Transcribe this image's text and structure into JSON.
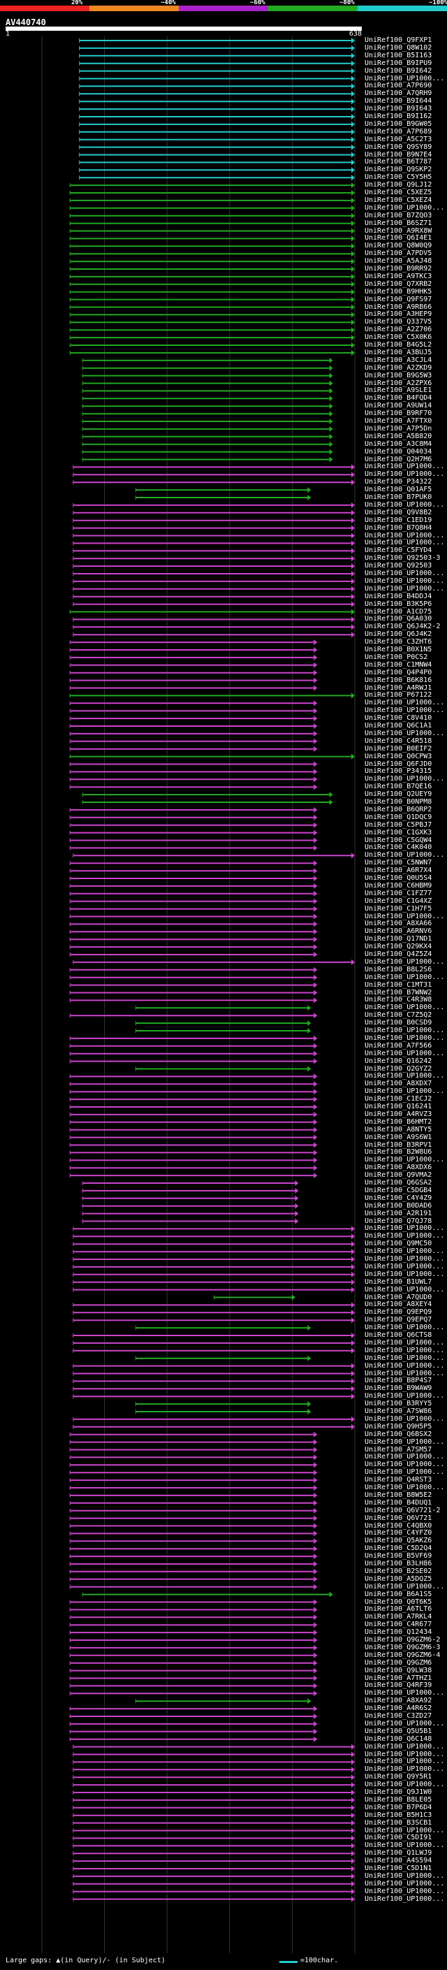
{
  "query": {
    "title": "AV440740",
    "scale_start": "1",
    "scale_end": "638"
  },
  "legend": {
    "segments": [
      {
        "label": "20%",
        "color": "#ee2222"
      },
      {
        "label": "~40%",
        "color": "#ee8822"
      },
      {
        "label": "~60%",
        "color": "#aa22cc"
      },
      {
        "label": "~80%",
        "color": "#22aa22"
      },
      {
        "label": "~100%",
        "color": "#22cccc"
      }
    ]
  },
  "colors": {
    "cyan": "#22cccc",
    "green": "#22aa22",
    "magenta": "#cc44cc",
    "gap_dot": "#ffffaa"
  },
  "hit_patterns": [
    {
      "color": "cyan",
      "start": 0.12,
      "end": 1.0
    },
    {
      "color": "green",
      "start": 0.09,
      "end": 1.0
    },
    {
      "color": "green",
      "start": 0.13,
      "end": 0.93
    },
    {
      "color": "magenta",
      "start": 0.1,
      "end": 1.0
    },
    {
      "color": "magenta",
      "start": 0.09,
      "end": 0.88
    },
    {
      "color": "green",
      "start": 0.3,
      "end": 0.86
    },
    {
      "color": "magenta",
      "start": 0.13,
      "end": 0.82
    },
    {
      "color": "green",
      "start": 0.55,
      "end": 0.81
    }
  ],
  "hits": [
    {
      "label": "UniRef100_Q9FXP1",
      "pattern": 0
    },
    {
      "label": "UniRef100_Q8W102",
      "pattern": 0
    },
    {
      "label": "UniRef100_B5I163",
      "pattern": 0
    },
    {
      "label": "UniRef100_B9IPU9",
      "pattern": 0
    },
    {
      "label": "UniRef100_B9I642",
      "pattern": 0
    },
    {
      "label": "UniRef100_UP1000...",
      "pattern": 0
    },
    {
      "label": "UniRef100_A7P690",
      "pattern": 0
    },
    {
      "label": "UniRef100_A7QRH9",
      "pattern": 0
    },
    {
      "label": "UniRef100_B9I644",
      "pattern": 0
    },
    {
      "label": "UniRef100_B9I643",
      "pattern": 0
    },
    {
      "label": "UniRef100_B9I162",
      "pattern": 0
    },
    {
      "label": "UniRef100_B9GW05",
      "pattern": 0
    },
    {
      "label": "UniRef100_A7P689",
      "pattern": 0
    },
    {
      "label": "UniRef100_A5C2T3",
      "pattern": 0
    },
    {
      "label": "UniRef100_Q9SY89",
      "pattern": 0
    },
    {
      "label": "UniRef100_B9N7E4",
      "pattern": 0
    },
    {
      "label": "UniRef100_B6T787",
      "pattern": 0
    },
    {
      "label": "UniRef100_Q9SKP2",
      "pattern": 0
    },
    {
      "label": "UniRef100_C5Y5H5",
      "pattern": 0
    },
    {
      "label": "UniRef100_Q9LJ12",
      "pattern": 1
    },
    {
      "label": "UniRef100_C5XEZ5",
      "pattern": 1
    },
    {
      "label": "UniRef100_C5XEZ4",
      "pattern": 1
    },
    {
      "label": "UniRef100_UP1000...",
      "pattern": 1
    },
    {
      "label": "UniRef100_B7ZQO3",
      "pattern": 1
    },
    {
      "label": "UniRef100_B6SZ71",
      "pattern": 1
    },
    {
      "label": "UniRef100_A9RX8W",
      "pattern": 1
    },
    {
      "label": "UniRef100_Q6I4E1",
      "pattern": 1
    },
    {
      "label": "UniRef100_Q8W0Q9",
      "pattern": 1
    },
    {
      "label": "UniRef100_A7PDV5",
      "pattern": 1
    },
    {
      "label": "UniRef100_A5AJ48",
      "pattern": 1
    },
    {
      "label": "UniRef100_B9RR92",
      "pattern": 1
    },
    {
      "label": "UniRef100_A9TKC3",
      "pattern": 1
    },
    {
      "label": "UniRef100_Q7XRB2",
      "pattern": 1
    },
    {
      "label": "UniRef100_B9HHK5",
      "pattern": 1
    },
    {
      "label": "UniRef100_Q9FS97",
      "pattern": 1
    },
    {
      "label": "UniRef100_A9RB66",
      "pattern": 1
    },
    {
      "label": "UniRef100_A3HEP9",
      "pattern": 1
    },
    {
      "label": "UniRef100_Q337V5",
      "pattern": 1
    },
    {
      "label": "UniRef100_A2Z706",
      "pattern": 1
    },
    {
      "label": "UniRef100_C5X0K6",
      "pattern": 1
    },
    {
      "label": "UniRef100_B4G5L2",
      "pattern": 1
    },
    {
      "label": "UniRef100_A3BUJ5",
      "pattern": 1
    },
    {
      "label": "UniRef100_A3CJL4",
      "pattern": 2
    },
    {
      "label": "UniRef100_A2ZKD9",
      "pattern": 2
    },
    {
      "label": "UniRef100_B9G5W3",
      "pattern": 2
    },
    {
      "label": "UniRef100_A2ZPX6",
      "pattern": 2
    },
    {
      "label": "UniRef100_A9SLE1",
      "pattern": 2
    },
    {
      "label": "UniRef100_B4FQD4",
      "pattern": 2
    },
    {
      "label": "UniRef100_A9UW14",
      "pattern": 2
    },
    {
      "label": "UniRef100_B9RF70",
      "pattern": 2
    },
    {
      "label": "UniRef100_A7FTX0",
      "pattern": 2
    },
    {
      "label": "UniRef100_A7P5Dn",
      "pattern": 2
    },
    {
      "label": "UniRef100_A5B820",
      "pattern": 2
    },
    {
      "label": "UniRef100_A3C8M4",
      "pattern": 2
    },
    {
      "label": "UniRef100_Q04034",
      "pattern": 2
    },
    {
      "label": "UniRef100_Q2H7M6",
      "pattern": 2
    },
    {
      "label": "UniRef100_UP1000...",
      "pattern": 3
    },
    {
      "label": "UniRef100_UP1000...",
      "pattern": 3
    },
    {
      "label": "UniRef100_P34322",
      "pattern": 3
    },
    {
      "label": "UniRef100_Q01AF5",
      "pattern": 5
    },
    {
      "label": "UniRef100_B7PUK0",
      "pattern": 5
    },
    {
      "label": "UniRef100_UP1000...",
      "pattern": 3
    },
    {
      "label": "UniRef100_Q9V8B2",
      "pattern": 3
    },
    {
      "label": "UniRef100_C1ED19",
      "pattern": 3
    },
    {
      "label": "UniRef100_B7Q8H4",
      "pattern": 3
    },
    {
      "label": "UniRef100_UP1000...",
      "pattern": 3
    },
    {
      "label": "UniRef100_UP1000...",
      "pattern": 3
    },
    {
      "label": "UniRef100_C5FYD4",
      "pattern": 3
    },
    {
      "label": "UniRef100_Q92503-3",
      "pattern": 3
    },
    {
      "label": "UniRef100_Q92503",
      "pattern": 3
    },
    {
      "label": "UniRef100_UP1000...",
      "pattern": 3
    },
    {
      "label": "UniRef100_UP1000...",
      "pattern": 3
    },
    {
      "label": "UniRef100_UP1000...",
      "pattern": 3
    },
    {
      "label": "UniRef100_B4DDJ4",
      "pattern": 3
    },
    {
      "label": "UniRef100_B3K5P6",
      "pattern": 3
    },
    {
      "label": "UniRef100_A1CD75",
      "pattern": 1
    },
    {
      "label": "UniRef100_Q6A030",
      "pattern": 3
    },
    {
      "label": "UniRef100_Q6J4K2-2",
      "pattern": 3
    },
    {
      "label": "UniRef100_Q6J4K2",
      "pattern": 3
    },
    {
      "label": "UniRef100_C3ZHT6",
      "pattern": 4
    },
    {
      "label": "UniRef100_B0X1N5",
      "pattern": 4
    },
    {
      "label": "UniRef100_P0CS2",
      "pattern": 4
    },
    {
      "label": "UniRef100_C1MNW4",
      "pattern": 4
    },
    {
      "label": "UniRef100_Q4P4P0",
      "pattern": 4
    },
    {
      "label": "UniRef100_B6K816",
      "pattern": 4
    },
    {
      "label": "UniRef100_A4RWJ1",
      "pattern": 4
    },
    {
      "label": "UniRef100_P67122",
      "pattern": 1
    },
    {
      "label": "UniRef100_UP1000...",
      "pattern": 4
    },
    {
      "label": "UniRef100_UP1000...",
      "pattern": 4
    },
    {
      "label": "UniRef100_C8V410",
      "pattern": 4
    },
    {
      "label": "UniRef100_Q6C1A1",
      "pattern": 4
    },
    {
      "label": "UniRef100_UP1000...",
      "pattern": 4
    },
    {
      "label": "UniRef100_C4R518",
      "pattern": 4
    },
    {
      "label": "UniRef100_B0EIF2",
      "pattern": 4
    },
    {
      "label": "UniRef100_Q0CPW3",
      "pattern": 1
    },
    {
      "label": "UniRef100_Q6FJD0",
      "pattern": 4
    },
    {
      "label": "UniRef100_P34315",
      "pattern": 4
    },
    {
      "label": "UniRef100_UP1000...",
      "pattern": 4
    },
    {
      "label": "UniRef100_B7QE16",
      "pattern": 4
    },
    {
      "label": "UniRef100_Q2UEY9",
      "pattern": 2
    },
    {
      "label": "UniRef100_B0NPM8",
      "pattern": 2
    },
    {
      "label": "UniRef100_B6QRP2",
      "pattern": 4
    },
    {
      "label": "UniRef100_Q1DQC9",
      "pattern": 4
    },
    {
      "label": "UniRef100_C5PBJ7",
      "pattern": 4
    },
    {
      "label": "UniRef100_C1GXK3",
      "pattern": 4
    },
    {
      "label": "UniRef100_C5GQW4",
      "pattern": 4
    },
    {
      "label": "UniRef100_C4K040",
      "pattern": 4
    },
    {
      "label": "UniRef100_UP1000...",
      "pattern": 3
    },
    {
      "label": "UniRef100_C5NWN7",
      "pattern": 4
    },
    {
      "label": "UniRef100_A6R7X4",
      "pattern": 4
    },
    {
      "label": "UniRef100_Q0U5S4",
      "pattern": 4
    },
    {
      "label": "UniRef100_C6HBM9",
      "pattern": 4
    },
    {
      "label": "UniRef100_C1FZ77",
      "pattern": 4
    },
    {
      "label": "UniRef100_C1G4XZ",
      "pattern": 4
    },
    {
      "label": "UniRef100_C1H7F5",
      "pattern": 4
    },
    {
      "label": "UniRef100_UP1000...",
      "pattern": 4
    },
    {
      "label": "UniRef100_A8XA66",
      "pattern": 4
    },
    {
      "label": "UniRef100_A6RNV6",
      "pattern": 4
    },
    {
      "label": "UniRef100_Q17ND1",
      "pattern": 4
    },
    {
      "label": "UniRef100_Q29KX4",
      "pattern": 4
    },
    {
      "label": "UniRef100_Q4Z5Z4",
      "pattern": 4
    },
    {
      "label": "UniRef100_UP1000...",
      "pattern": 3
    },
    {
      "label": "UniRef100_B8L2S6",
      "pattern": 4
    },
    {
      "label": "UniRef100_UP1000...",
      "pattern": 4
    },
    {
      "label": "UniRef100_C1MT31",
      "pattern": 4
    },
    {
      "label": "UniRef100_B7WNW2",
      "pattern": 4
    },
    {
      "label": "UniRef100_C4R3W8",
      "pattern": 4
    },
    {
      "label": "UniRef100_UP1000...",
      "pattern": 5
    },
    {
      "label": "UniRef100_C7Z5Q2",
      "pattern": 4
    },
    {
      "label": "UniRef100_B0CSD9",
      "pattern": 5
    },
    {
      "label": "UniRef100_UP1000...",
      "pattern": 5
    },
    {
      "label": "UniRef100_UP1000...",
      "pattern": 4
    },
    {
      "label": "UniRef100_A7F566",
      "pattern": 4
    },
    {
      "label": "UniRef100_UP1000...",
      "pattern": 4
    },
    {
      "label": "UniRef100_Q16242",
      "pattern": 4
    },
    {
      "label": "UniRef100_Q2GYZ2",
      "pattern": 5
    },
    {
      "label": "UniRef100_UP1000...",
      "pattern": 4
    },
    {
      "label": "UniRef100_A8XDX7",
      "pattern": 4
    },
    {
      "label": "UniRef100_UP1000...",
      "pattern": 4
    },
    {
      "label": "UniRef100_C1ECJ2",
      "pattern": 4
    },
    {
      "label": "UniRef100_Q16241",
      "pattern": 4
    },
    {
      "label": "UniRef100_A4RVZ3",
      "pattern": 4
    },
    {
      "label": "UniRef100_B6HMT2",
      "pattern": 4
    },
    {
      "label": "UniRef100_A8NTY5",
      "pattern": 4
    },
    {
      "label": "UniRef100_A9S6W1",
      "pattern": 4
    },
    {
      "label": "UniRef100_B3RPV1",
      "pattern": 4
    },
    {
      "label": "UniRef100_B2W8U6",
      "pattern": 4
    },
    {
      "label": "UniRef100_UP1000...",
      "pattern": 4
    },
    {
      "label": "UniRef100_A8XDX6",
      "pattern": 4
    },
    {
      "label": "UniRef100_Q9VMA2",
      "pattern": 4
    },
    {
      "label": "UniRef100_Q6GSA2",
      "pattern": 6
    },
    {
      "label": "UniRef100_C5DGB4",
      "pattern": 6
    },
    {
      "label": "UniRef100_C4Y4Z9",
      "pattern": 6
    },
    {
      "label": "UniRef100_B0DAD6",
      "pattern": 6
    },
    {
      "label": "UniRef100_A2R191",
      "pattern": 6
    },
    {
      "label": "UniRef100_Q7QJ78",
      "pattern": 6
    },
    {
      "label": "UniRef100_UP1000...",
      "pattern": 3
    },
    {
      "label": "UniRef100_UP1000...",
      "pattern": 3
    },
    {
      "label": "UniRef100_Q9MC50",
      "pattern": 3
    },
    {
      "label": "UniRef100_UP1000...",
      "pattern": 3
    },
    {
      "label": "UniRef100_UP1000...",
      "pattern": 3
    },
    {
      "label": "UniRef100_UP1000...",
      "pattern": 3
    },
    {
      "label": "UniRef100_UP1000...",
      "pattern": 3
    },
    {
      "label": "UniRef100_B1UWL7",
      "pattern": 3
    },
    {
      "label": "UniRef100_UP1000...",
      "pattern": 3
    },
    {
      "label": "UniRef100_A7QUD0",
      "pattern": 7
    },
    {
      "label": "UniRef100_A8XEY4",
      "pattern": 3
    },
    {
      "label": "UniRef100_Q9EPQ9",
      "pattern": 3
    },
    {
      "label": "UniRef100_Q9EPQ7",
      "pattern": 3
    },
    {
      "label": "UniRef100_UP1000...",
      "pattern": 5
    },
    {
      "label": "UniRef100_Q6CTS8",
      "pattern": 3
    },
    {
      "label": "UniRef100_UP1000...",
      "pattern": 3
    },
    {
      "label": "UniRef100_UP1000...",
      "pattern": 3
    },
    {
      "label": "UniRef100_UP1000...",
      "pattern": 5
    },
    {
      "label": "UniRef100_UP1000...",
      "pattern": 3
    },
    {
      "label": "UniRef100_UP1000...",
      "pattern": 3
    },
    {
      "label": "UniRef100_B8P4S7",
      "pattern": 3
    },
    {
      "label": "UniRef100_B9WAW9",
      "pattern": 3
    },
    {
      "label": "UniRef100_UP1000...",
      "pattern": 3
    },
    {
      "label": "UniRef100_B3RYY5",
      "pattern": 5
    },
    {
      "label": "UniRef100_A7SW86",
      "pattern": 5
    },
    {
      "label": "UniRef100_UP1000...",
      "pattern": 3
    },
    {
      "label": "UniRef100_Q9H5P5",
      "pattern": 3
    },
    {
      "label": "UniRef100_Q6BSX2",
      "pattern": 4
    },
    {
      "label": "UniRef100_UP1000...",
      "pattern": 4
    },
    {
      "label": "UniRef100_A7SM57",
      "pattern": 4
    },
    {
      "label": "UniRef100_UP1000...",
      "pattern": 4
    },
    {
      "label": "UniRef100_UP1000...",
      "pattern": 4
    },
    {
      "label": "UniRef100_UP1000...",
      "pattern": 4
    },
    {
      "label": "UniRef100_Q4RST3",
      "pattern": 4
    },
    {
      "label": "UniRef100_UP1000...",
      "pattern": 4
    },
    {
      "label": "UniRef100_B8W5E2",
      "pattern": 4
    },
    {
      "label": "UniRef100_B4DUQ1",
      "pattern": 4
    },
    {
      "label": "UniRef100_Q6V721-2",
      "pattern": 4
    },
    {
      "label": "UniRef100_Q6V721",
      "pattern": 4
    },
    {
      "label": "UniRef100_C4QBX0",
      "pattern": 4
    },
    {
      "label": "UniRef100_C4YFZ0",
      "pattern": 4
    },
    {
      "label": "UniRef100_Q5AKZ6",
      "pattern": 4
    },
    {
      "label": "UniRef100_C5D2Q4",
      "pattern": 4
    },
    {
      "label": "UniRef100_B5VF69",
      "pattern": 4
    },
    {
      "label": "UniRef100_B3LH86",
      "pattern": 4
    },
    {
      "label": "UniRef100_B2SE02",
      "pattern": 4
    },
    {
      "label": "UniRef100_A5DQZ5",
      "pattern": 4
    },
    {
      "label": "UniRef100_UP1000...",
      "pattern": 4
    },
    {
      "label": "UniRef100_B6A1S5",
      "pattern": 2
    },
    {
      "label": "UniRef100_Q0T6K5",
      "pattern": 4
    },
    {
      "label": "UniRef100_A6TLT6",
      "pattern": 4
    },
    {
      "label": "UniRef100_A7RKL4",
      "pattern": 4
    },
    {
      "label": "UniRef100_C4R677",
      "pattern": 4
    },
    {
      "label": "UniRef100_Q12434",
      "pattern": 4
    },
    {
      "label": "UniRef100_Q9GZM6-2",
      "pattern": 4
    },
    {
      "label": "UniRef100_Q9GZM6-3",
      "pattern": 4
    },
    {
      "label": "UniRef100_Q9GZM6-4",
      "pattern": 4
    },
    {
      "label": "UniRef100_Q9GZM6",
      "pattern": 4
    },
    {
      "label": "UniRef100_Q9LW38",
      "pattern": 4
    },
    {
      "label": "UniRef100_A7THZ1",
      "pattern": 4
    },
    {
      "label": "UniRef100_Q4RF39",
      "pattern": 4
    },
    {
      "label": "UniRef100_UP1000...",
      "pattern": 4
    },
    {
      "label": "UniRef100_A8XA92",
      "pattern": 5
    },
    {
      "label": "UniRef100_A4R6S2",
      "pattern": 4
    },
    {
      "label": "UniRef100_C3ZD27",
      "pattern": 4
    },
    {
      "label": "UniRef100_UP1000...",
      "pattern": 4
    },
    {
      "label": "UniRef100_Q5U5B1",
      "pattern": 4
    },
    {
      "label": "UniRef100_Q6C148",
      "pattern": 4
    },
    {
      "label": "UniRef100_UP1000...",
      "pattern": 3
    },
    {
      "label": "UniRef100_UP1000...",
      "pattern": 3
    },
    {
      "label": "UniRef100_UP1000...",
      "pattern": 3
    },
    {
      "label": "UniRef100_UP1000...",
      "pattern": 3
    },
    {
      "label": "UniRef100_Q9Y5R1",
      "pattern": 3
    },
    {
      "label": "UniRef100_UP1000...",
      "pattern": 3
    },
    {
      "label": "UniRef100_Q9J1W0",
      "pattern": 3
    },
    {
      "label": "UniRef100_B8LE05",
      "pattern": 3
    },
    {
      "label": "UniRef100_B7P6D4",
      "pattern": 3
    },
    {
      "label": "UniRef100_B5H1C3",
      "pattern": 3
    },
    {
      "label": "UniRef100_B3SCB1",
      "pattern": 3
    },
    {
      "label": "UniRef100_UP1000...",
      "pattern": 3
    },
    {
      "label": "UniRef100_C5DI91",
      "pattern": 3
    },
    {
      "label": "UniRef100_UP1000...",
      "pattern": 3
    },
    {
      "label": "UniRef100_Q1LWJ9",
      "pattern": 3
    },
    {
      "label": "UniRef100_A4S594",
      "pattern": 3
    },
    {
      "label": "UniRef100_C5D1N1",
      "pattern": 3
    },
    {
      "label": "UniRef100_UP1000...",
      "pattern": 3
    },
    {
      "label": "UniRef100_UP1000...",
      "pattern": 3
    },
    {
      "label": "UniRef100_UP1000...",
      "pattern": 3
    },
    {
      "label": "UniRef100_UP1000...",
      "pattern": 3
    }
  ],
  "footer": {
    "gap_note": "Large gaps: ▲(in Query)/- (in Subject)",
    "scale_note": "=100char."
  }
}
